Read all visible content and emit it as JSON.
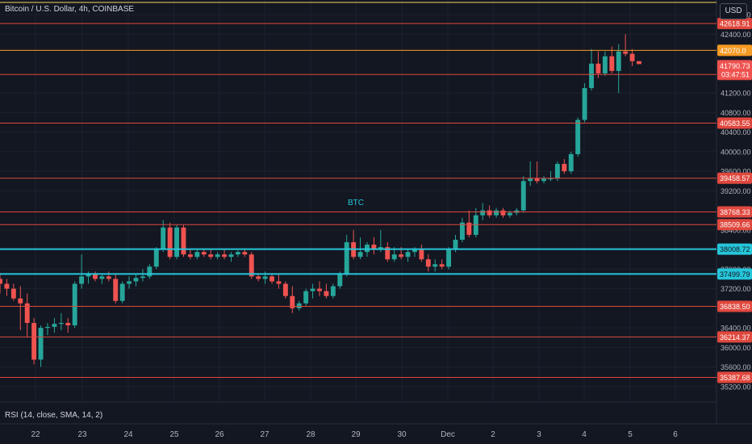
{
  "header": {
    "title": "Bitcoin / U.S. Dollar, 4h, COINBASE",
    "currency": "USD"
  },
  "indicator": {
    "label": "RSI (14, close, SMA, 14, 2)"
  },
  "colors": {
    "up": "#26a69a",
    "down": "#ef5350",
    "background": "#131722",
    "grid": "#1e222d",
    "red_line": "#e0483e",
    "orange_line": "#f59a23",
    "cyan_line": "#26c6da",
    "yellow_line": "#f0d55a",
    "axis_text": "#b2b5be"
  },
  "chart_data": {
    "type": "candlestick",
    "ylim": [
      34900,
      43100
    ],
    "xaxis_ticks": [
      "22",
      "23",
      "24",
      "25",
      "26",
      "27",
      "28",
      "29",
      "30",
      "Dec",
      "2",
      "3",
      "4",
      "5",
      "6"
    ],
    "yaxis_ticks": [
      "42800.00",
      "42400.00",
      "41200.00",
      "40800.00",
      "40400.00",
      "40000.00",
      "39600.00",
      "39200.00",
      "38400.00",
      "37600.00",
      "37200.00",
      "36400.00",
      "36000.00",
      "35600.00",
      "35200.00"
    ],
    "annotation": "BTC",
    "horizontal_levels": [
      {
        "value": 43050,
        "color": "yellow",
        "label": ""
      },
      {
        "value": 42618.91,
        "color": "red",
        "label": "42618.91"
      },
      {
        "value": 42070,
        "color": "orange",
        "label": "42070.0"
      },
      {
        "value": 41577.96,
        "color": "red",
        "label": "41577.96"
      },
      {
        "value": 40583.55,
        "color": "red",
        "label": "40583.55"
      },
      {
        "value": 39458.57,
        "color": "red",
        "label": "39458.57"
      },
      {
        "value": 38768.33,
        "color": "red",
        "label": "38768.33"
      },
      {
        "value": 38509.66,
        "color": "red",
        "label": "38509.66"
      },
      {
        "value": 38008.72,
        "color": "cyan",
        "label": "38008.72"
      },
      {
        "value": 37499.79,
        "color": "cyan",
        "label": "37499.79"
      },
      {
        "value": 36838.5,
        "color": "red",
        "label": "36838.50"
      },
      {
        "value": 36214.37,
        "color": "red",
        "label": "36214.37"
      },
      {
        "value": 35387.68,
        "color": "red",
        "label": "35387.68"
      }
    ],
    "last_price": {
      "value": 41790.73,
      "label": "41790.73",
      "countdown": "03:47:51"
    },
    "candles": [
      {
        "o": 37400,
        "h": 37520,
        "l": 37100,
        "c": 37300
      },
      {
        "o": 37300,
        "h": 37400,
        "l": 37050,
        "c": 37200
      },
      {
        "o": 37200,
        "h": 37300,
        "l": 36950,
        "c": 37000
      },
      {
        "o": 37000,
        "h": 37250,
        "l": 36350,
        "c": 36900
      },
      {
        "o": 36900,
        "h": 37100,
        "l": 36200,
        "c": 36500
      },
      {
        "o": 36500,
        "h": 36600,
        "l": 35650,
        "c": 35750
      },
      {
        "o": 35750,
        "h": 36450,
        "l": 35600,
        "c": 36400
      },
      {
        "o": 36400,
        "h": 36500,
        "l": 36250,
        "c": 36420
      },
      {
        "o": 36420,
        "h": 36600,
        "l": 36300,
        "c": 36480
      },
      {
        "o": 36480,
        "h": 36700,
        "l": 36350,
        "c": 36500
      },
      {
        "o": 36500,
        "h": 36600,
        "l": 36300,
        "c": 36450
      },
      {
        "o": 36450,
        "h": 37350,
        "l": 36400,
        "c": 37300
      },
      {
        "o": 37300,
        "h": 37900,
        "l": 37200,
        "c": 37450
      },
      {
        "o": 37450,
        "h": 37550,
        "l": 37300,
        "c": 37500
      },
      {
        "o": 37500,
        "h": 37550,
        "l": 37350,
        "c": 37400
      },
      {
        "o": 37400,
        "h": 37500,
        "l": 37300,
        "c": 37450
      },
      {
        "o": 37450,
        "h": 37550,
        "l": 37350,
        "c": 37400
      },
      {
        "o": 37400,
        "h": 37500,
        "l": 36900,
        "c": 36950
      },
      {
        "o": 36950,
        "h": 37350,
        "l": 36900,
        "c": 37300
      },
      {
        "o": 37300,
        "h": 37450,
        "l": 37200,
        "c": 37350
      },
      {
        "o": 37350,
        "h": 37500,
        "l": 37250,
        "c": 37420
      },
      {
        "o": 37420,
        "h": 37600,
        "l": 37350,
        "c": 37450
      },
      {
        "o": 37450,
        "h": 37700,
        "l": 37400,
        "c": 37650
      },
      {
        "o": 37650,
        "h": 38050,
        "l": 37600,
        "c": 38000
      },
      {
        "o": 38000,
        "h": 38600,
        "l": 37950,
        "c": 38450
      },
      {
        "o": 38450,
        "h": 38550,
        "l": 37800,
        "c": 37850
      },
      {
        "o": 37850,
        "h": 38500,
        "l": 37800,
        "c": 38450
      },
      {
        "o": 38450,
        "h": 38500,
        "l": 37850,
        "c": 37900
      },
      {
        "o": 37900,
        "h": 38000,
        "l": 37800,
        "c": 37850
      },
      {
        "o": 37850,
        "h": 38000,
        "l": 37800,
        "c": 37950
      },
      {
        "o": 37950,
        "h": 38000,
        "l": 37850,
        "c": 37900
      },
      {
        "o": 37900,
        "h": 38000,
        "l": 37800,
        "c": 37850
      },
      {
        "o": 37850,
        "h": 37950,
        "l": 37800,
        "c": 37900
      },
      {
        "o": 37900,
        "h": 38000,
        "l": 37800,
        "c": 37850
      },
      {
        "o": 37850,
        "h": 37950,
        "l": 37750,
        "c": 37900
      },
      {
        "o": 37900,
        "h": 37980,
        "l": 37850,
        "c": 37950
      },
      {
        "o": 37950,
        "h": 38000,
        "l": 37850,
        "c": 37900
      },
      {
        "o": 37900,
        "h": 37950,
        "l": 37400,
        "c": 37450
      },
      {
        "o": 37450,
        "h": 37500,
        "l": 37350,
        "c": 37400
      },
      {
        "o": 37400,
        "h": 37550,
        "l": 37300,
        "c": 37450
      },
      {
        "o": 37450,
        "h": 37500,
        "l": 37300,
        "c": 37350
      },
      {
        "o": 37350,
        "h": 37500,
        "l": 37200,
        "c": 37300
      },
      {
        "o": 37300,
        "h": 37350,
        "l": 37000,
        "c": 37050
      },
      {
        "o": 37050,
        "h": 37250,
        "l": 36700,
        "c": 36800
      },
      {
        "o": 36800,
        "h": 36950,
        "l": 36750,
        "c": 36900
      },
      {
        "o": 36900,
        "h": 37200,
        "l": 36850,
        "c": 37150
      },
      {
        "o": 37150,
        "h": 37300,
        "l": 37000,
        "c": 37200
      },
      {
        "o": 37200,
        "h": 37350,
        "l": 37050,
        "c": 37150
      },
      {
        "o": 37150,
        "h": 37300,
        "l": 37000,
        "c": 37050
      },
      {
        "o": 37050,
        "h": 37300,
        "l": 37000,
        "c": 37250
      },
      {
        "o": 37250,
        "h": 37550,
        "l": 37200,
        "c": 37500
      },
      {
        "o": 37500,
        "h": 38300,
        "l": 37450,
        "c": 38150
      },
      {
        "o": 38150,
        "h": 38400,
        "l": 37800,
        "c": 37850
      },
      {
        "o": 37850,
        "h": 38250,
        "l": 37800,
        "c": 37950
      },
      {
        "o": 37950,
        "h": 38150,
        "l": 37850,
        "c": 38100
      },
      {
        "o": 38100,
        "h": 38250,
        "l": 37900,
        "c": 38000
      },
      {
        "o": 38000,
        "h": 38400,
        "l": 37950,
        "c": 38050
      },
      {
        "o": 38050,
        "h": 38150,
        "l": 37750,
        "c": 37800
      },
      {
        "o": 37800,
        "h": 38050,
        "l": 37750,
        "c": 37900
      },
      {
        "o": 37900,
        "h": 38050,
        "l": 37800,
        "c": 37850
      },
      {
        "o": 37850,
        "h": 38000,
        "l": 37750,
        "c": 37950
      },
      {
        "o": 37950,
        "h": 38050,
        "l": 37850,
        "c": 38000
      },
      {
        "o": 38000,
        "h": 38100,
        "l": 37750,
        "c": 37800
      },
      {
        "o": 37800,
        "h": 37900,
        "l": 37550,
        "c": 37650
      },
      {
        "o": 37650,
        "h": 37800,
        "l": 37550,
        "c": 37700
      },
      {
        "o": 37700,
        "h": 37800,
        "l": 37600,
        "c": 37650
      },
      {
        "o": 37650,
        "h": 38050,
        "l": 37600,
        "c": 38000
      },
      {
        "o": 38000,
        "h": 38300,
        "l": 37950,
        "c": 38200
      },
      {
        "o": 38200,
        "h": 38650,
        "l": 38150,
        "c": 38550
      },
      {
        "o": 38550,
        "h": 38800,
        "l": 38250,
        "c": 38300
      },
      {
        "o": 38300,
        "h": 38850,
        "l": 38250,
        "c": 38700
      },
      {
        "o": 38700,
        "h": 38950,
        "l": 38600,
        "c": 38800
      },
      {
        "o": 38800,
        "h": 38900,
        "l": 38650,
        "c": 38700
      },
      {
        "o": 38700,
        "h": 38850,
        "l": 38650,
        "c": 38800
      },
      {
        "o": 38800,
        "h": 38850,
        "l": 38650,
        "c": 38700
      },
      {
        "o": 38700,
        "h": 38800,
        "l": 38650,
        "c": 38750
      },
      {
        "o": 38750,
        "h": 38850,
        "l": 38700,
        "c": 38800
      },
      {
        "o": 38800,
        "h": 39500,
        "l": 38750,
        "c": 39400
      },
      {
        "o": 39400,
        "h": 39800,
        "l": 39300,
        "c": 39450
      },
      {
        "o": 39450,
        "h": 39800,
        "l": 39350,
        "c": 39400
      },
      {
        "o": 39400,
        "h": 39500,
        "l": 39350,
        "c": 39450
      },
      {
        "o": 39450,
        "h": 39600,
        "l": 39400,
        "c": 39450
      },
      {
        "o": 39450,
        "h": 39800,
        "l": 39400,
        "c": 39750
      },
      {
        "o": 39750,
        "h": 39850,
        "l": 39550,
        "c": 39600
      },
      {
        "o": 39600,
        "h": 40000,
        "l": 39550,
        "c": 39950
      },
      {
        "o": 39950,
        "h": 40700,
        "l": 39900,
        "c": 40650
      },
      {
        "o": 40650,
        "h": 41400,
        "l": 40600,
        "c": 41300
      },
      {
        "o": 41300,
        "h": 42100,
        "l": 41250,
        "c": 41800
      },
      {
        "o": 41800,
        "h": 42050,
        "l": 41500,
        "c": 41600
      },
      {
        "o": 41600,
        "h": 42050,
        "l": 41550,
        "c": 41950
      },
      {
        "o": 41950,
        "h": 42150,
        "l": 41600,
        "c": 41650
      },
      {
        "o": 41650,
        "h": 42200,
        "l": 41200,
        "c": 42050
      },
      {
        "o": 42050,
        "h": 42400,
        "l": 41950,
        "c": 42000
      },
      {
        "o": 42000,
        "h": 42100,
        "l": 41750,
        "c": 41850
      },
      {
        "o": 41850,
        "h": 41850,
        "l": 41790,
        "c": 41790
      }
    ]
  }
}
